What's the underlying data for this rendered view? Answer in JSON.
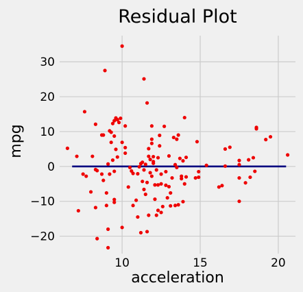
{
  "chart_data": {
    "type": "scatter",
    "title": "Residual Plot",
    "xlabel": "acceleration",
    "ylabel": "mpg",
    "xlim": [
      6.0,
      21.1
    ],
    "ylim": [
      -25,
      37.5
    ],
    "x_ticks": [
      10,
      15,
      20
    ],
    "y_ticks": [
      -20,
      -10,
      0,
      10,
      20,
      30
    ],
    "x_tick_labels": [
      "10",
      "15",
      "20"
    ],
    "y_tick_labels": [
      "−20",
      "−10",
      "0",
      "10",
      "20",
      "30"
    ],
    "grid": true,
    "point_color": "#ee0000",
    "line_color": "#00007f",
    "zero_line": {
      "x_start": 6.8,
      "x_end": 20.5,
      "y": 0
    },
    "points": [
      [
        6.5,
        5.2
      ],
      [
        7.1,
        2.9
      ],
      [
        7.2,
        -12.7
      ],
      [
        7.5,
        -2.2
      ],
      [
        7.6,
        15.7
      ],
      [
        7.7,
        -2.8
      ],
      [
        8.0,
        -7.3
      ],
      [
        8.1,
        2.9
      ],
      [
        8.3,
        12.1
      ],
      [
        8.3,
        -11.8
      ],
      [
        8.3,
        -0.9
      ],
      [
        8.4,
        -1.2
      ],
      [
        8.4,
        -20.7
      ],
      [
        8.7,
        9.0
      ],
      [
        8.7,
        -2.2
      ],
      [
        8.8,
        9.0
      ],
      [
        8.8,
        -4.0
      ],
      [
        8.9,
        27.5
      ],
      [
        9.0,
        -11.2
      ],
      [
        9.0,
        -7.6
      ],
      [
        9.1,
        -23.3
      ],
      [
        9.1,
        -18.0
      ],
      [
        9.1,
        0.7
      ],
      [
        9.2,
        10.2
      ],
      [
        9.2,
        -2.2
      ],
      [
        9.3,
        6.9
      ],
      [
        9.3,
        9.8
      ],
      [
        9.4,
        1.8
      ],
      [
        9.4,
        12.3
      ],
      [
        9.5,
        -1.4
      ],
      [
        9.5,
        13.1
      ],
      [
        9.5,
        8.7
      ],
      [
        9.5,
        -9.5
      ],
      [
        9.5,
        -10.3
      ],
      [
        9.6,
        4.9
      ],
      [
        9.6,
        13.9
      ],
      [
        9.7,
        13.4
      ],
      [
        9.7,
        2.7
      ],
      [
        9.8,
        12.6
      ],
      [
        9.9,
        13.8
      ],
      [
        10.0,
        6.9
      ],
      [
        10.0,
        -17.5
      ],
      [
        10.0,
        34.5
      ],
      [
        10.2,
        11.6
      ],
      [
        10.2,
        5.4
      ],
      [
        10.2,
        3.8
      ],
      [
        10.4,
        -5.9
      ],
      [
        10.5,
        -0.3
      ],
      [
        10.6,
        -1.3
      ],
      [
        10.7,
        -11.2
      ],
      [
        10.7,
        -2.0
      ],
      [
        10.9,
        -9.7
      ],
      [
        11.0,
        -14.5
      ],
      [
        11.0,
        -2.1
      ],
      [
        11.1,
        -0.1
      ],
      [
        11.2,
        0.8
      ],
      [
        11.2,
        -19.0
      ],
      [
        11.3,
        1.2
      ],
      [
        11.3,
        -4.3
      ],
      [
        11.4,
        -1.0
      ],
      [
        11.4,
        -6.6
      ],
      [
        11.4,
        25.1
      ],
      [
        11.5,
        0.6
      ],
      [
        11.5,
        -8.0
      ],
      [
        11.6,
        -18.7
      ],
      [
        11.6,
        -4.6
      ],
      [
        11.6,
        18.2
      ],
      [
        11.7,
        2.9
      ],
      [
        11.7,
        5.1
      ],
      [
        11.7,
        -14.0
      ],
      [
        11.8,
        -1.8
      ],
      [
        11.8,
        2.0
      ],
      [
        11.9,
        7.8
      ],
      [
        11.9,
        11.6
      ],
      [
        11.9,
        6.6
      ],
      [
        11.9,
        -2.8
      ],
      [
        12.0,
        0.9
      ],
      [
        12.0,
        1.4
      ],
      [
        12.0,
        2.8
      ],
      [
        12.1,
        -5.3
      ],
      [
        12.1,
        -9.4
      ],
      [
        12.2,
        -1.0
      ],
      [
        12.2,
        -14.0
      ],
      [
        12.3,
        2.5
      ],
      [
        12.3,
        -12.6
      ],
      [
        12.3,
        -5.3
      ],
      [
        12.4,
        5.9
      ],
      [
        12.4,
        8.9
      ],
      [
        12.5,
        -2.2
      ],
      [
        12.5,
        -13.2
      ],
      [
        12.5,
        -5.0
      ],
      [
        12.6,
        -11.5
      ],
      [
        12.7,
        11.5
      ],
      [
        12.8,
        -1.5
      ],
      [
        12.8,
        -5.4
      ],
      [
        12.9,
        -9.0
      ],
      [
        13.0,
        3.0
      ],
      [
        13.0,
        -5.8
      ],
      [
        13.1,
        -7.6
      ],
      [
        13.1,
        -11.3
      ],
      [
        13.2,
        -3.3
      ],
      [
        13.3,
        8.3
      ],
      [
        13.4,
        -11.2
      ],
      [
        13.4,
        0.5
      ],
      [
        13.5,
        7.8
      ],
      [
        13.5,
        -0.3
      ],
      [
        13.6,
        9.0
      ],
      [
        13.6,
        -11.0
      ],
      [
        13.7,
        2.3
      ],
      [
        13.8,
        -3.5
      ],
      [
        13.8,
        -2.8
      ],
      [
        13.9,
        1.6
      ],
      [
        13.9,
        -10.1
      ],
      [
        14.0,
        14.0
      ],
      [
        14.0,
        -5.0
      ],
      [
        14.1,
        2.6
      ],
      [
        14.1,
        -3.0
      ],
      [
        14.7,
        -3.3
      ],
      [
        14.8,
        7.1
      ],
      [
        14.9,
        -1.5
      ],
      [
        14.9,
        -3.1
      ],
      [
        15.4,
        0.3
      ],
      [
        16.2,
        -5.9
      ],
      [
        16.4,
        -5.5
      ],
      [
        16.6,
        5.0
      ],
      [
        16.6,
        0.1
      ],
      [
        16.9,
        5.5
      ],
      [
        17.5,
        1.7
      ],
      [
        17.5,
        0.5
      ],
      [
        17.5,
        -3.3
      ],
      [
        17.5,
        -10.0
      ],
      [
        17.9,
        -4.7
      ],
      [
        18.1,
        1.9
      ],
      [
        18.2,
        -3.1
      ],
      [
        18.4,
        2.5
      ],
      [
        18.5,
        -1.4
      ],
      [
        18.6,
        11.2
      ],
      [
        18.6,
        10.8
      ],
      [
        19.2,
        7.7
      ],
      [
        19.5,
        8.5
      ],
      [
        20.6,
        3.3
      ]
    ]
  }
}
